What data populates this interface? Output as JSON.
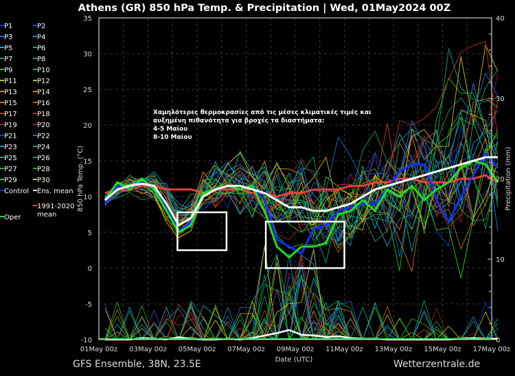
{
  "chart_data": {
    "type": "line",
    "title": "Athens  (GR)  850 hPa Temp. & Precipitation | Wed, 01May2024 00Z",
    "xlabel": "Date (UTC)",
    "ylabel": "850 hPa Temp. (°C)",
    "y2label": "Precipitation (mm)",
    "ylim": [
      -10,
      35
    ],
    "y2lim": [
      0,
      40
    ],
    "yticks": [
      "35",
      "30",
      "25",
      "20",
      "15",
      "10",
      "5",
      "0",
      "-5",
      "-10"
    ],
    "y2ticks": [
      "40",
      "30",
      "20",
      "10",
      "0"
    ],
    "xticks": [
      "01May 00z",
      "03May 00z",
      "05May 00z",
      "07May 00z",
      "09May 00z",
      "11May 00z",
      "13May 00z",
      "15May 00z",
      "17May 00z"
    ],
    "x_range_days": [
      0,
      16
    ],
    "grid": true,
    "legend_placement": "left-outside",
    "step_hours": 12,
    "highlighted": {
      "ens_mean": {
        "name": "Ens. mean",
        "color": "#ffffff",
        "values": [
          9.5,
          11,
          11.5,
          11.8,
          11.5,
          9,
          6,
          7,
          10,
          11,
          11.5,
          11.5,
          11,
          10.5,
          9.5,
          8.5,
          8.5,
          8,
          8,
          8.5,
          9,
          10,
          11,
          11.5,
          12,
          12.5,
          13,
          13.5,
          14,
          14.5,
          15,
          15.5,
          15.5
        ]
      },
      "climate_mean": {
        "name": "1991-2020 mean",
        "color": "#ff4040",
        "values": [
          10.5,
          11,
          11,
          11.5,
          11.5,
          11,
          11,
          11,
          10.5,
          11,
          11,
          11,
          10.5,
          10.5,
          10,
          10.5,
          10.5,
          11,
          11,
          11,
          11.5,
          11.5,
          12,
          12,
          12.5,
          12.5,
          12,
          12,
          12,
          12.5,
          12.5,
          13,
          12
        ]
      },
      "control": {
        "name": "Control",
        "color": "#1030ff",
        "values": [
          9,
          11.5,
          11,
          12,
          11.5,
          8.5,
          5,
          6.5,
          10.5,
          11,
          11.5,
          11,
          11.5,
          9.5,
          4,
          3,
          2,
          5.5,
          6,
          8,
          8.5,
          9,
          9,
          11,
          13.5,
          14.5,
          14.5,
          9.5,
          6.5,
          10,
          13,
          16,
          14
        ]
      },
      "oper": {
        "name": "Oper",
        "color": "#20e020",
        "values": [
          9.5,
          12,
          11,
          12.5,
          11,
          8,
          5,
          6,
          10.5,
          11,
          11.5,
          11,
          11.5,
          8,
          3,
          1.5,
          3,
          3,
          3.5,
          7.5,
          8,
          9.5,
          8,
          11,
          10,
          11.5,
          9.5,
          11,
          12,
          14,
          15,
          14.5,
          12
        ]
      },
      "ens_mean_precip": [
        0,
        0,
        0,
        0.2,
        0.1,
        0,
        0.3,
        0.1,
        0,
        0,
        0.1,
        0,
        0.2,
        0.5,
        0.8,
        1.2,
        0.6,
        0.5,
        0.3,
        0.4,
        0.2,
        0.1,
        0.1,
        0,
        0,
        0,
        0,
        0,
        0,
        0.1,
        0.2,
        0.1,
        0.1
      ]
    },
    "members": [
      {
        "name": "P1",
        "color": "#1030d0"
      },
      {
        "name": "P2",
        "color": "#1050e0"
      },
      {
        "name": "P3",
        "color": "#1080e0"
      },
      {
        "name": "P4",
        "color": "#1090d0"
      },
      {
        "name": "P5",
        "color": "#10b0c0"
      },
      {
        "name": "P6",
        "color": "#10b090"
      },
      {
        "name": "P7",
        "color": "#10a070"
      },
      {
        "name": "P8",
        "color": "#10a050"
      },
      {
        "name": "P9",
        "color": "#20c020"
      },
      {
        "name": "P10",
        "color": "#20c020"
      },
      {
        "name": "P11",
        "color": "#d0c020"
      },
      {
        "name": "P12",
        "color": "#d0b020"
      },
      {
        "name": "P13",
        "color": "#d09020"
      },
      {
        "name": "P14",
        "color": "#d08020"
      },
      {
        "name": "P15",
        "color": "#c07020"
      },
      {
        "name": "P16",
        "color": "#c06020"
      },
      {
        "name": "P17",
        "color": "#c04020"
      },
      {
        "name": "P18",
        "color": "#c03020"
      },
      {
        "name": "P19",
        "color": "#a02020"
      },
      {
        "name": "P20",
        "color": "#902020"
      },
      {
        "name": "P21",
        "color": "#1040c0"
      },
      {
        "name": "P22",
        "color": "#1070d0"
      },
      {
        "name": "P23",
        "color": "#10a0c0"
      },
      {
        "name": "P24",
        "color": "#10a0b0"
      },
      {
        "name": "P25",
        "color": "#10a080"
      },
      {
        "name": "P26",
        "color": "#10a060"
      },
      {
        "name": "P27",
        "color": "#20b040"
      },
      {
        "name": "P28",
        "color": "#20b030"
      },
      {
        "name": "P29",
        "color": "#30d010"
      },
      {
        "name": "P30",
        "color": "#d0d000"
      }
    ],
    "annotation": {
      "lines": [
        "Χαμηλότερες θερμοκρασίες από τις μέσες κλιματικές τιμές και",
        "αυξημένη πιθανότητα για βροχές τα διαστήματα:",
        "4-5 Μαίου",
        "8-10 Μαίου"
      ],
      "boxes": [
        {
          "label": "4-5 Μαίου",
          "x_days": [
            3.2,
            5.2
          ],
          "y_temp": [
            2.5,
            7.8
          ]
        },
        {
          "label": "8-10 Μαίου",
          "x_days": [
            6.8,
            10.0
          ],
          "y_temp": [
            0,
            6.5
          ]
        }
      ]
    }
  },
  "legend": {
    "items": [
      "P1",
      "P2",
      "P3",
      "P4",
      "P5",
      "P6",
      "P7",
      "P8",
      "P9",
      "P10",
      "P11",
      "P12",
      "P13",
      "P14",
      "P15",
      "P16",
      "P17",
      "P18",
      "P19",
      "P20",
      "P21",
      "P22",
      "P23",
      "P24",
      "P25",
      "P26",
      "P27",
      "P28",
      "P29",
      "P30"
    ],
    "control": "Control",
    "ens_mean": "Ens. mean",
    "climate_mean_line1": "1991-2020",
    "climate_mean_line2": "mean",
    "oper": "Oper"
  },
  "footer": {
    "left": "GFS Ensemble, 38N, 23.5E",
    "right": "Wetterzentrale.de"
  }
}
